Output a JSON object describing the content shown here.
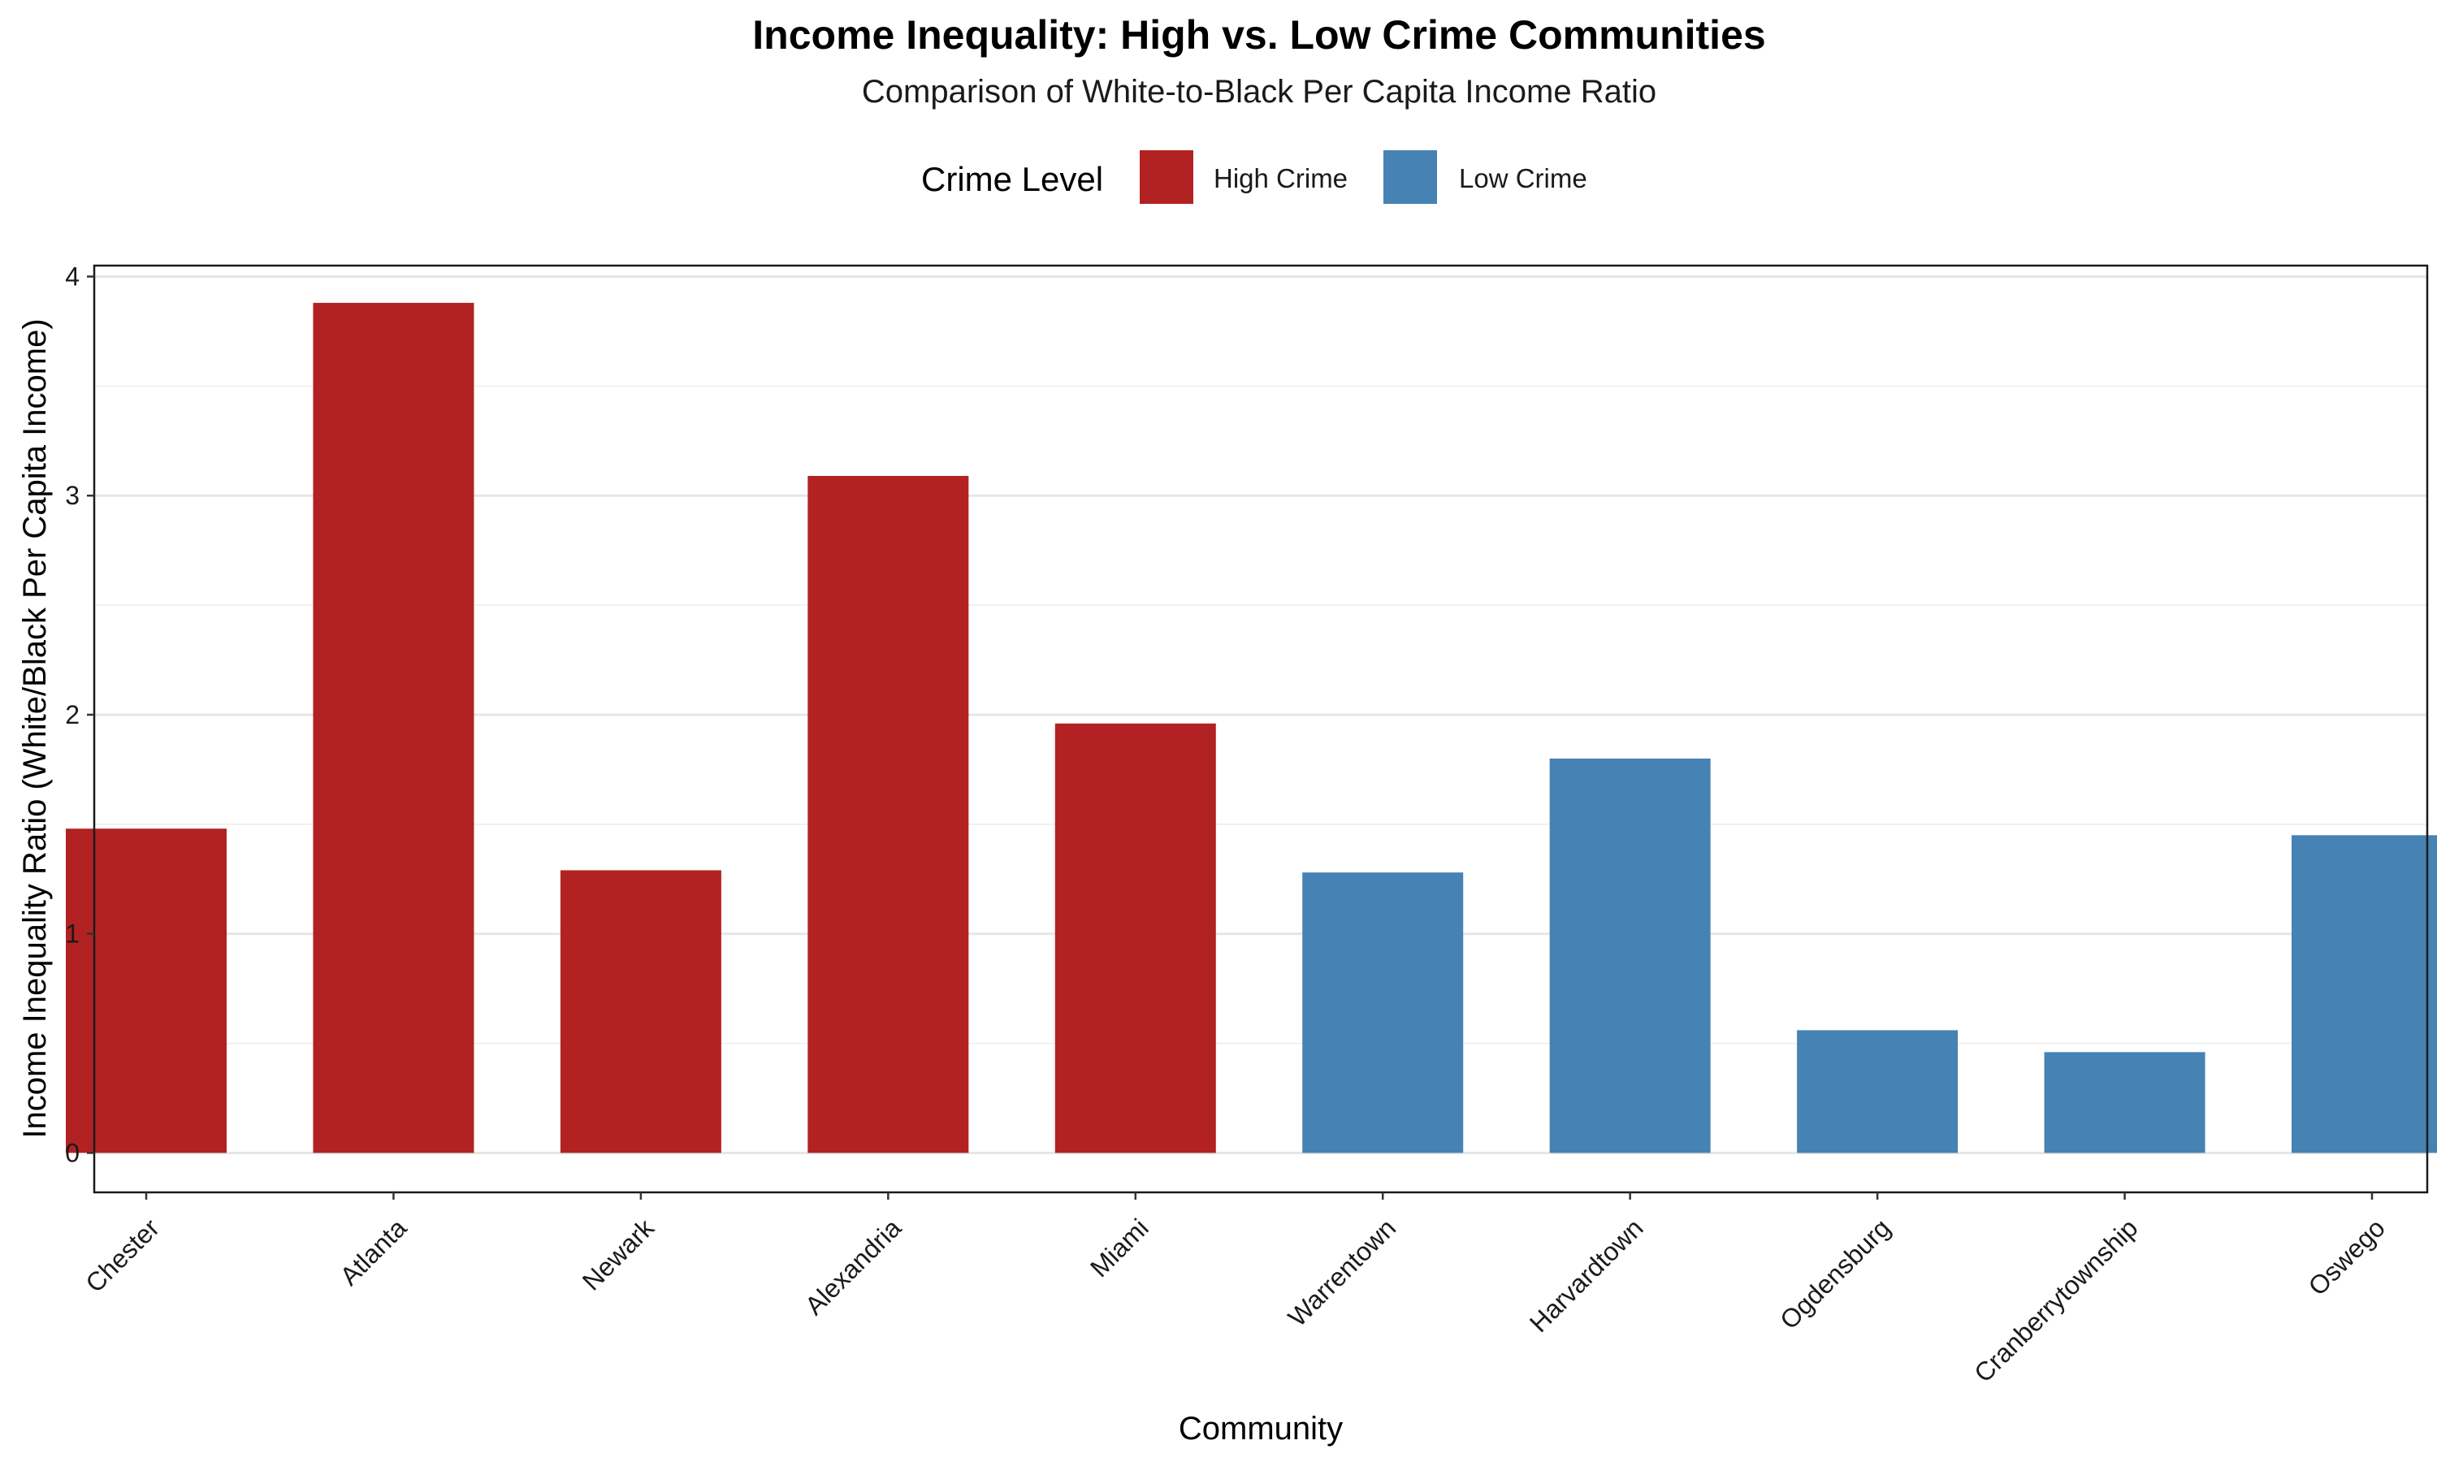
{
  "chart_data": {
    "type": "bar",
    "title": "Income Inequality: High vs. Low Crime Communities",
    "subtitle": "Comparison of White-to-Black Per Capita Income Ratio",
    "xlabel": "Community",
    "ylabel": "Income Inequality Ratio (White/Black Per Capita Income)",
    "ylim": [
      -0.18,
      4.05
    ],
    "yticks": [
      0,
      1,
      2,
      3,
      4
    ],
    "grid": true,
    "legend": {
      "title": "Crime Level",
      "placement": "top",
      "entries": [
        {
          "label": "High Crime",
          "color": "#b22222"
        },
        {
          "label": "Low Crime",
          "color": "#4682b4"
        }
      ]
    },
    "categories": [
      "Chester",
      "Atlanta",
      "Newark",
      "Alexandria",
      "Miami",
      "Warrentown",
      "Harvardtown",
      "Ogdensburg",
      "Cranberrytownship",
      "Oswego"
    ],
    "values": [
      1.48,
      3.88,
      1.29,
      3.09,
      1.96,
      1.28,
      1.8,
      0.56,
      0.46,
      1.45
    ],
    "groups": [
      "High Crime",
      "High Crime",
      "High Crime",
      "High Crime",
      "High Crime",
      "Low Crime",
      "Low Crime",
      "Low Crime",
      "Low Crime",
      "Low Crime"
    ]
  }
}
